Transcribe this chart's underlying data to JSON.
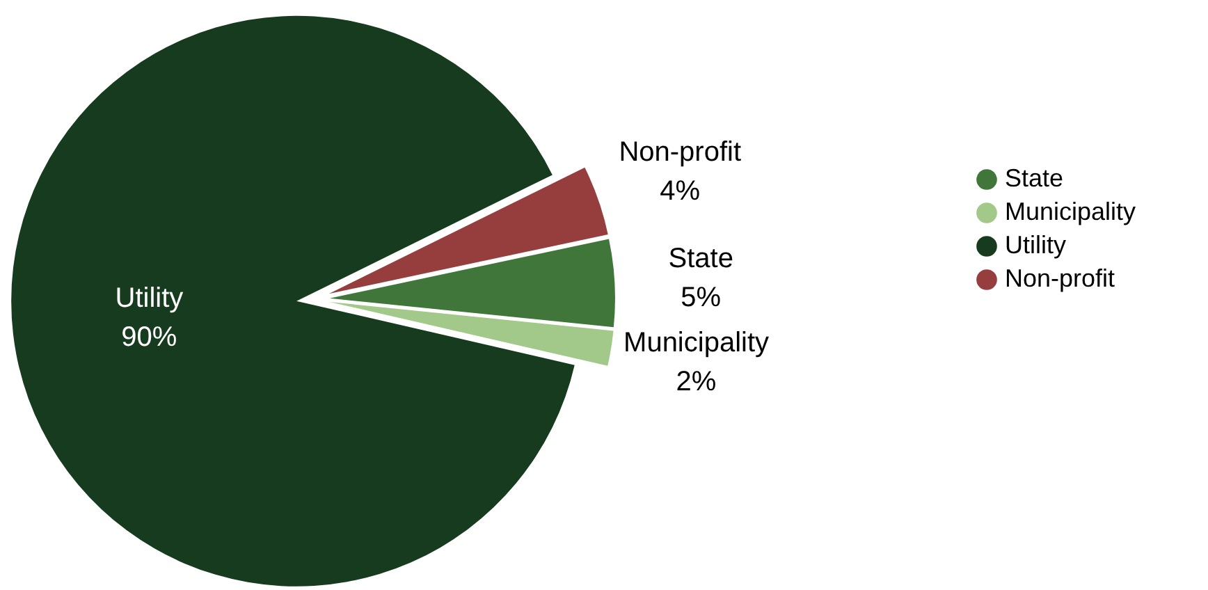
{
  "chart_data": {
    "type": "pie",
    "categories": [
      "State",
      "Municipality",
      "Utility",
      "Non-profit"
    ],
    "values": [
      5,
      2,
      90,
      4
    ],
    "value_labels": [
      "5%",
      "2%",
      "90%",
      "4%"
    ],
    "colors": [
      "#41763a",
      "#a3c98a",
      "#163b1e",
      "#963d3e"
    ],
    "legend": "right"
  }
}
